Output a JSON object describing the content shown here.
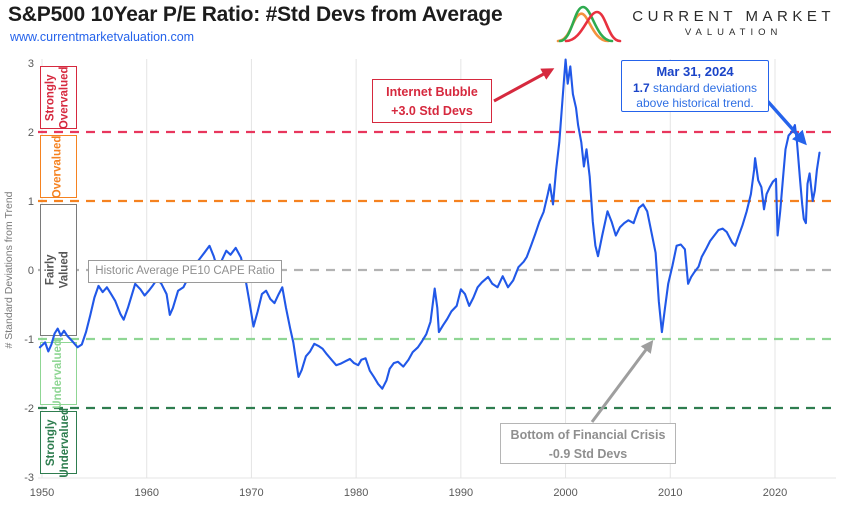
{
  "header": {
    "title": "S&P500 10Year P/E Ratio: #Std Devs from Average",
    "url": "www.currentmarketvaluation.com",
    "logo": {
      "line1": "CURRENT MARKET",
      "line2": "VALUATION"
    }
  },
  "colors": {
    "line_blue": "#2158e8",
    "red": "#d6293e",
    "pink_red": "#e8365d",
    "orange": "#f58220",
    "gray_dash": "#b3b3b3",
    "light_green": "#8fd694",
    "dark_green": "#2e7d4f",
    "grid": "#e4e4e4",
    "tick_text": "#595959",
    "axis_label": "#7a7a7a"
  },
  "zones": [
    {
      "label": "Strongly\nOvervalued",
      "color": "#d6293e",
      "from": 2,
      "to": 3
    },
    {
      "label": "Overvalued",
      "color": "#f58220",
      "from": 1,
      "to": 2
    },
    {
      "label": "Fairly Valued",
      "color": "#7a7a7a",
      "text_color": "#555555",
      "from": -1,
      "to": 1
    },
    {
      "label": "Undervalued",
      "color": "#8fd694",
      "from": -2,
      "to": -1
    },
    {
      "label": "Strongly\nUndervalued",
      "color": "#2e7d4f",
      "from": -3,
      "to": -2
    }
  ],
  "annotations": {
    "historic_avg": "Historic Average PE10 CAPE Ratio",
    "internet_bubble": {
      "line1": "Internet Bubble",
      "line2": "+3.0 Std Devs"
    },
    "mar_2024": {
      "line1": "Mar 31, 2024",
      "bold_value": "1.7",
      "line2": " standard deviations",
      "line3": "above historical trend."
    },
    "financial_crisis": {
      "line1": "Bottom of Financial Crisis",
      "line2": "-0.9 Std Devs"
    }
  },
  "chart_data": {
    "type": "line",
    "title": "S&P500 10Year P/E Ratio: #Std Devs from Average",
    "xlabel": "",
    "ylabel": "# Standard Deviations from Trend",
    "xlim": [
      1949.8,
      2025.5
    ],
    "ylim": [
      -3,
      3
    ],
    "x_ticks": [
      1950,
      1960,
      1970,
      1980,
      1990,
      2000,
      2010,
      2020
    ],
    "y_ticks": [
      3,
      2,
      1,
      0,
      -1,
      -2,
      -3
    ],
    "grid": "vertical-decades",
    "legend": "none",
    "thresholds": [
      {
        "value": 2,
        "color": "#e8365d"
      },
      {
        "value": 1,
        "color": "#f58220"
      },
      {
        "value": 0,
        "color": "#b3b3b3"
      },
      {
        "value": -1,
        "color": "#8fd694"
      },
      {
        "value": -2,
        "color": "#2e7d4f"
      }
    ],
    "series": [
      {
        "name": "PE10 std devs from trend",
        "color": "#2158e8",
        "points": [
          [
            1949.8,
            -1.12
          ],
          [
            1950.3,
            -1.05
          ],
          [
            1950.6,
            -1.18
          ],
          [
            1950.9,
            -1.08
          ],
          [
            1951.2,
            -0.92
          ],
          [
            1951.5,
            -0.85
          ],
          [
            1951.8,
            -0.95
          ],
          [
            1952.1,
            -0.88
          ],
          [
            1952.4,
            -0.95
          ],
          [
            1952.7,
            -1.0
          ],
          [
            1953.0,
            -1.05
          ],
          [
            1953.4,
            -1.12
          ],
          [
            1953.8,
            -1.08
          ],
          [
            1954.2,
            -0.9
          ],
          [
            1954.6,
            -0.66
          ],
          [
            1955.0,
            -0.4
          ],
          [
            1955.4,
            -0.23
          ],
          [
            1955.8,
            -0.32
          ],
          [
            1956.2,
            -0.25
          ],
          [
            1956.6,
            -0.35
          ],
          [
            1957.0,
            -0.45
          ],
          [
            1957.5,
            -0.64
          ],
          [
            1957.8,
            -0.72
          ],
          [
            1958.2,
            -0.55
          ],
          [
            1958.9,
            -0.2
          ],
          [
            1959.4,
            -0.28
          ],
          [
            1959.8,
            -0.37
          ],
          [
            1960.2,
            -0.3
          ],
          [
            1960.6,
            -0.22
          ],
          [
            1961.0,
            -0.13
          ],
          [
            1961.4,
            -0.2
          ],
          [
            1961.9,
            -0.35
          ],
          [
            1962.2,
            -0.65
          ],
          [
            1962.5,
            -0.55
          ],
          [
            1963.0,
            -0.3
          ],
          [
            1963.5,
            -0.25
          ],
          [
            1964.0,
            -0.1
          ],
          [
            1964.5,
            0.05
          ],
          [
            1965.0,
            0.15
          ],
          [
            1965.5,
            0.25
          ],
          [
            1966.0,
            0.35
          ],
          [
            1966.4,
            0.2
          ],
          [
            1966.8,
            0.0
          ],
          [
            1967.2,
            0.15
          ],
          [
            1967.6,
            0.28
          ],
          [
            1968.0,
            0.22
          ],
          [
            1968.5,
            0.32
          ],
          [
            1969.0,
            0.18
          ],
          [
            1969.4,
            -0.1
          ],
          [
            1969.8,
            -0.45
          ],
          [
            1970.2,
            -0.82
          ],
          [
            1970.6,
            -0.6
          ],
          [
            1971.0,
            -0.35
          ],
          [
            1971.4,
            -0.3
          ],
          [
            1971.8,
            -0.42
          ],
          [
            1972.2,
            -0.48
          ],
          [
            1972.6,
            -0.35
          ],
          [
            1972.95,
            -0.25
          ],
          [
            1973.3,
            -0.55
          ],
          [
            1973.7,
            -0.85
          ],
          [
            1974.0,
            -1.05
          ],
          [
            1974.5,
            -1.55
          ],
          [
            1974.8,
            -1.45
          ],
          [
            1975.2,
            -1.25
          ],
          [
            1975.6,
            -1.18
          ],
          [
            1976.0,
            -1.07
          ],
          [
            1976.4,
            -1.1
          ],
          [
            1976.8,
            -1.14
          ],
          [
            1977.2,
            -1.22
          ],
          [
            1977.7,
            -1.31
          ],
          [
            1978.1,
            -1.38
          ],
          [
            1978.5,
            -1.36
          ],
          [
            1979.0,
            -1.32
          ],
          [
            1979.4,
            -1.29
          ],
          [
            1979.8,
            -1.35
          ],
          [
            1980.2,
            -1.38
          ],
          [
            1980.5,
            -1.3
          ],
          [
            1980.9,
            -1.28
          ],
          [
            1981.3,
            -1.46
          ],
          [
            1981.7,
            -1.55
          ],
          [
            1982.1,
            -1.65
          ],
          [
            1982.5,
            -1.72
          ],
          [
            1982.9,
            -1.6
          ],
          [
            1983.2,
            -1.43
          ],
          [
            1983.6,
            -1.35
          ],
          [
            1984.0,
            -1.33
          ],
          [
            1984.5,
            -1.4
          ],
          [
            1985.0,
            -1.3
          ],
          [
            1985.4,
            -1.19
          ],
          [
            1985.9,
            -1.12
          ],
          [
            1986.3,
            -1.03
          ],
          [
            1986.7,
            -0.93
          ],
          [
            1987.1,
            -0.75
          ],
          [
            1987.5,
            -0.27
          ],
          [
            1987.75,
            -0.55
          ],
          [
            1987.9,
            -0.9
          ],
          [
            1988.3,
            -0.8
          ],
          [
            1988.7,
            -0.71
          ],
          [
            1989.1,
            -0.6
          ],
          [
            1989.6,
            -0.52
          ],
          [
            1990.0,
            -0.28
          ],
          [
            1990.4,
            -0.35
          ],
          [
            1990.8,
            -0.52
          ],
          [
            1991.2,
            -0.4
          ],
          [
            1991.6,
            -0.25
          ],
          [
            1992.0,
            -0.18
          ],
          [
            1992.6,
            -0.1
          ],
          [
            1993.0,
            -0.2
          ],
          [
            1993.5,
            -0.25
          ],
          [
            1994.0,
            -0.09
          ],
          [
            1994.5,
            -0.25
          ],
          [
            1995.0,
            -0.15
          ],
          [
            1995.5,
            0.04
          ],
          [
            1996.0,
            0.12
          ],
          [
            1996.3,
            0.19
          ],
          [
            1996.7,
            0.35
          ],
          [
            1997.1,
            0.52
          ],
          [
            1997.5,
            0.7
          ],
          [
            1997.9,
            0.84
          ],
          [
            1998.3,
            1.1
          ],
          [
            1998.5,
            1.24
          ],
          [
            1998.8,
            0.95
          ],
          [
            1999.1,
            1.45
          ],
          [
            1999.4,
            1.85
          ],
          [
            1999.7,
            2.45
          ],
          [
            1999.9,
            2.85
          ],
          [
            2000.0,
            3.05
          ],
          [
            2000.2,
            2.7
          ],
          [
            2000.45,
            2.95
          ],
          [
            2000.7,
            2.55
          ],
          [
            2001.0,
            2.35
          ],
          [
            2001.2,
            2.1
          ],
          [
            2001.5,
            1.85
          ],
          [
            2001.75,
            1.5
          ],
          [
            2002.0,
            1.75
          ],
          [
            2002.3,
            1.35
          ],
          [
            2002.6,
            0.7
          ],
          [
            2002.85,
            0.35
          ],
          [
            2003.1,
            0.2
          ],
          [
            2003.5,
            0.5
          ],
          [
            2004.0,
            0.85
          ],
          [
            2004.4,
            0.7
          ],
          [
            2004.8,
            0.5
          ],
          [
            2005.2,
            0.62
          ],
          [
            2005.6,
            0.68
          ],
          [
            2006.0,
            0.72
          ],
          [
            2006.5,
            0.68
          ],
          [
            2007.0,
            0.9
          ],
          [
            2007.4,
            0.95
          ],
          [
            2007.8,
            0.85
          ],
          [
            2008.2,
            0.55
          ],
          [
            2008.6,
            0.25
          ],
          [
            2008.9,
            -0.45
          ],
          [
            2009.2,
            -0.9
          ],
          [
            2009.5,
            -0.55
          ],
          [
            2009.8,
            -0.2
          ],
          [
            2010.2,
            0.06
          ],
          [
            2010.6,
            0.35
          ],
          [
            2011.0,
            0.37
          ],
          [
            2011.4,
            0.3
          ],
          [
            2011.7,
            -0.2
          ],
          [
            2012.0,
            -0.1
          ],
          [
            2012.3,
            -0.03
          ],
          [
            2012.7,
            0.05
          ],
          [
            2013.0,
            0.19
          ],
          [
            2013.4,
            0.3
          ],
          [
            2013.8,
            0.42
          ],
          [
            2014.2,
            0.5
          ],
          [
            2014.6,
            0.58
          ],
          [
            2015.0,
            0.6
          ],
          [
            2015.4,
            0.55
          ],
          [
            2015.9,
            0.4
          ],
          [
            2016.2,
            0.35
          ],
          [
            2016.5,
            0.48
          ],
          [
            2016.9,
            0.65
          ],
          [
            2017.3,
            0.85
          ],
          [
            2017.7,
            1.1
          ],
          [
            2018.0,
            1.45
          ],
          [
            2018.1,
            1.62
          ],
          [
            2018.4,
            1.3
          ],
          [
            2018.7,
            1.2
          ],
          [
            2018.95,
            0.88
          ],
          [
            2019.2,
            1.1
          ],
          [
            2019.5,
            1.2
          ],
          [
            2019.8,
            1.28
          ],
          [
            2020.1,
            1.32
          ],
          [
            2020.25,
            0.5
          ],
          [
            2020.5,
            0.85
          ],
          [
            2020.8,
            1.4
          ],
          [
            2021.0,
            1.75
          ],
          [
            2021.3,
            1.95
          ],
          [
            2021.6,
            2.0
          ],
          [
            2021.9,
            2.1
          ],
          [
            2022.1,
            1.85
          ],
          [
            2022.4,
            1.3
          ],
          [
            2022.6,
            0.95
          ],
          [
            2022.75,
            0.74
          ],
          [
            2022.95,
            0.68
          ],
          [
            2023.1,
            1.25
          ],
          [
            2023.3,
            1.4
          ],
          [
            2023.6,
            1.0
          ],
          [
            2023.8,
            1.15
          ],
          [
            2024.0,
            1.45
          ],
          [
            2024.25,
            1.7
          ]
        ]
      }
    ]
  }
}
